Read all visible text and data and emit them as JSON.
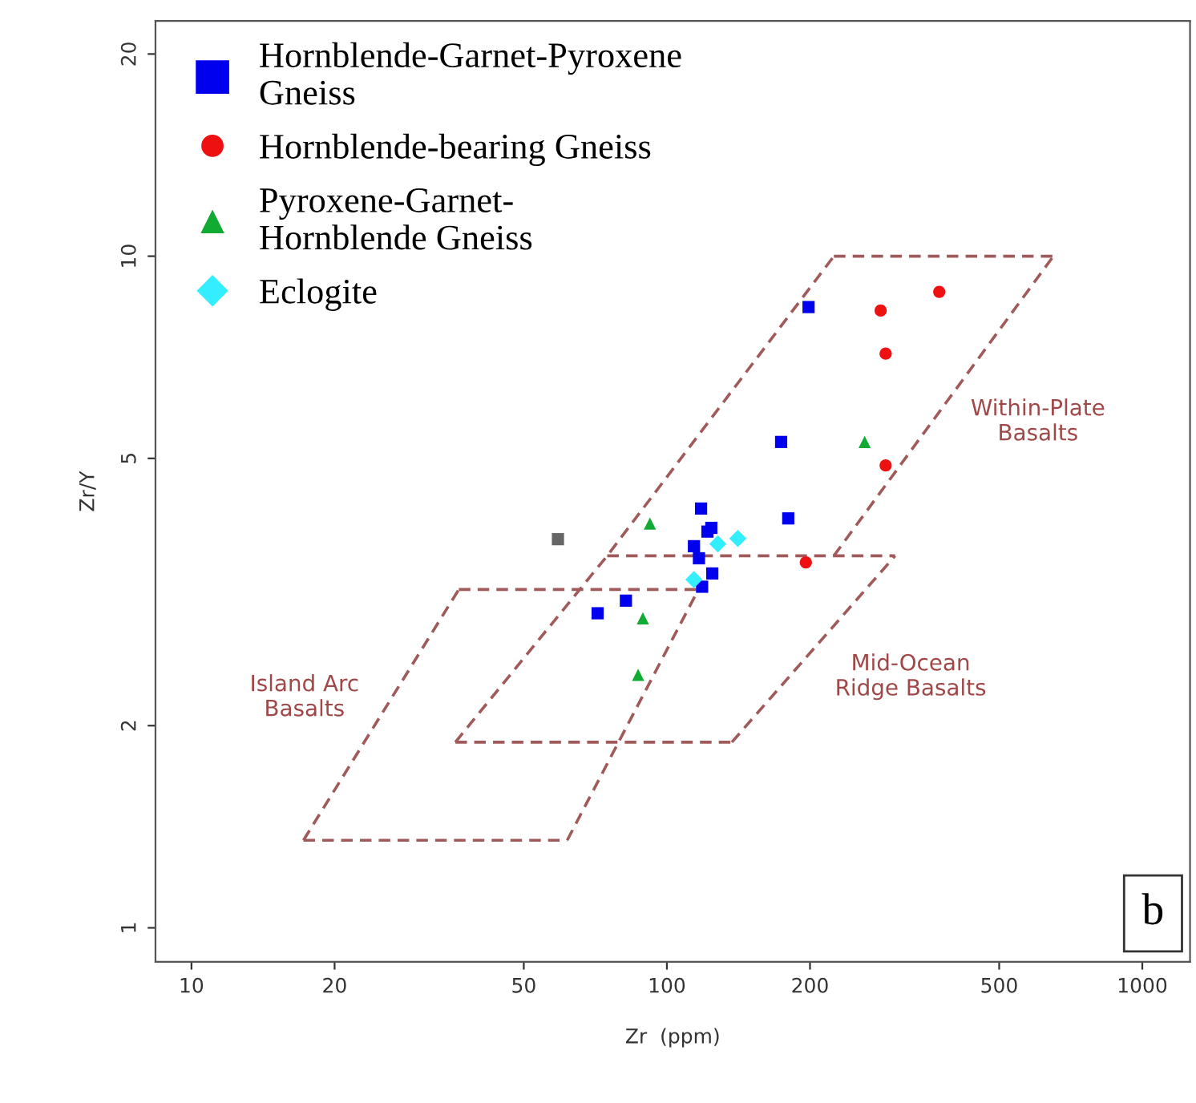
{
  "chart_data": {
    "type": "scatter",
    "xlabel": "Zr  (ppm)",
    "ylabel": "Zr/Y",
    "log": "xy",
    "xlim": [
      8.4,
      1260
    ],
    "ylim": [
      0.89,
      22.4
    ],
    "xticks": [
      10,
      20,
      50,
      100,
      200,
      500,
      1000
    ],
    "yticks": [
      1,
      2,
      5,
      10,
      20
    ],
    "grid": false,
    "legend": "top left",
    "series": [
      {
        "name": "Hornblende-Garnet-Pyroxene\nGneiss",
        "color": "#0000ee",
        "marker": "square",
        "x": [
          198.6,
          173.9,
          180,
          118,
          124,
          121.7,
          114,
          116.8,
          124.6,
          118.6,
          82,
          71.5
        ],
        "values": [
          8.4,
          5.29,
          4.07,
          4.21,
          3.94,
          3.89,
          3.7,
          3.55,
          3.37,
          3.22,
          3.07,
          2.94
        ]
      },
      {
        "name": "Hornblende-bearing Gneiss",
        "color": "#ee1111",
        "marker": "circle",
        "x": [
          374,
          281.6,
          288.5,
          288.5,
          196
        ],
        "values": [
          8.85,
          8.3,
          7.16,
          4.88,
          3.5
        ]
      },
      {
        "name": "Pyroxene-Garnet-\nHornblende Gneiss",
        "color": "#11aa33",
        "marker": "triangle",
        "x": [
          260.6,
          92.1,
          89,
          87
        ],
        "values": [
          5.29,
          4.0,
          2.89,
          2.38
        ]
      },
      {
        "name": "Eclogite",
        "color": "#33eeff",
        "marker": "diamond",
        "x": [
          128,
          141,
          114
        ],
        "values": [
          3.73,
          3.8,
          3.3
        ]
      },
      {
        "color": "#666666",
        "marker": "square",
        "x": [
          59
        ],
        "values": [
          3.79
        ]
      },
      {
        "type": "line",
        "color": "#a05a5a",
        "line_style": "dashed",
        "marker": "none",
        "x": [
          35.9,
          74.9,
          224.5
        ],
        "values": [
          1.89,
          3.58,
          10.0
        ]
      },
      {
        "type": "line",
        "color": "#a05a5a",
        "line_style": "dashed",
        "marker": "none",
        "x": [
          224.5,
          650
        ],
        "values": [
          10.0,
          10.0
        ]
      },
      {
        "type": "line",
        "color": "#a05a5a",
        "line_style": "dashed",
        "marker": "none",
        "x": [
          224.5,
          650
        ],
        "values": [
          3.58,
          10.0
        ]
      },
      {
        "type": "line",
        "color": "#a05a5a",
        "line_style": "dashed",
        "marker": "none",
        "x": [
          74.9,
          302
        ],
        "values": [
          3.58,
          3.58
        ]
      },
      {
        "type": "line",
        "color": "#a05a5a",
        "line_style": "dashed",
        "marker": "none",
        "x": [
          137,
          302
        ],
        "values": [
          1.89,
          3.58
        ]
      },
      {
        "type": "line",
        "color": "#a05a5a",
        "line_style": "dashed",
        "marker": "none",
        "x": [
          35.9,
          137
        ],
        "values": [
          1.89,
          1.89
        ]
      },
      {
        "type": "line",
        "color": "#a05a5a",
        "line_style": "dashed",
        "marker": "none",
        "x": [
          17.2,
          36.5
        ],
        "values": [
          1.35,
          3.19
        ]
      },
      {
        "type": "line",
        "color": "#a05a5a",
        "line_style": "dashed",
        "marker": "none",
        "x": [
          36.5,
          116.5
        ],
        "values": [
          3.19,
          3.19
        ]
      },
      {
        "type": "line",
        "color": "#a05a5a",
        "line_style": "dashed",
        "marker": "none",
        "x": [
          61.7,
          116.5
        ],
        "values": [
          1.35,
          3.19
        ]
      },
      {
        "type": "line",
        "color": "#a05a5a",
        "line_style": "dashed",
        "marker": "none",
        "x": [
          17.2,
          61.7
        ],
        "values": [
          1.35,
          1.35
        ]
      }
    ],
    "annotations": [
      "Within-Plate\nBasalts",
      "Island Arc\nBasalts",
      "Mid-Ocean\nRidge Basalts",
      "b"
    ]
  }
}
